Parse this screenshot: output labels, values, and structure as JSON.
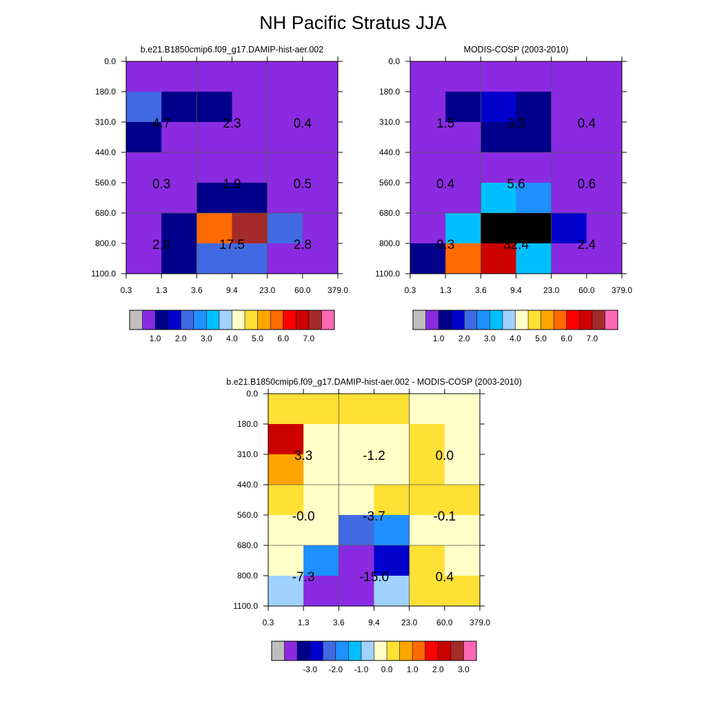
{
  "figure": {
    "title": "NH Pacific Stratus JJA"
  },
  "chart_data": [
    {
      "type": "heatmap",
      "title": "b.e21.B1850cmip6.f09_g17.DAMIP-hist-aer.002",
      "x_ticks": [
        "0.3",
        "1.3",
        "3.6",
        "9.4",
        "23.0",
        "60.0",
        "379.0"
      ],
      "y_ticks": [
        "0.0",
        "180.0",
        "310.0",
        "440.0",
        "560.0",
        "680.0",
        "800.0",
        "1100.0"
      ],
      "cells": [
        [
          "1",
          "1",
          "1",
          "1",
          "1",
          "1"
        ],
        [
          "4",
          "2",
          "2",
          "1",
          "1",
          "1"
        ],
        [
          "2",
          "1",
          "1",
          "1",
          "1",
          "1"
        ],
        [
          "1",
          "1",
          "1",
          "1",
          "1",
          "1"
        ],
        [
          "1",
          "1",
          "2",
          "2",
          "1",
          "1"
        ],
        [
          "1",
          "2",
          "11",
          "14",
          "4",
          "1"
        ],
        [
          "1",
          "2",
          "4",
          "4",
          "1",
          "1"
        ]
      ],
      "cell_values": [
        [
          "4.7",
          "2.3",
          "0.4"
        ],
        [
          "0.3",
          "1.9",
          "0.5"
        ],
        [
          "2.0",
          "17.5",
          "2.8"
        ]
      ],
      "colorbar": {
        "colors": [
          "#bebebe",
          "#8a2be2",
          "#00008b",
          "#0000cd",
          "#4169e1",
          "#1e90ff",
          "#00bfff",
          "#a0d2ff",
          "#ffffc8",
          "#ffe034",
          "#ffa500",
          "#ff6a00",
          "#ff0000",
          "#cd0000",
          "#a52a2a",
          "#ff69b4"
        ],
        "labels": [
          "1.0",
          "2.0",
          "3.0",
          "4.0",
          "5.0",
          "6.0",
          "7.0"
        ],
        "label_boundaries": [
          2,
          4,
          6,
          8,
          10,
          12,
          14
        ]
      }
    },
    {
      "type": "heatmap",
      "title": "MODIS-COSP (2003-2010)",
      "x_ticks": [
        "0.3",
        "1.3",
        "3.6",
        "9.4",
        "23.0",
        "60.0",
        "379.0"
      ],
      "y_ticks": [
        "0.0",
        "180.0",
        "310.0",
        "440.0",
        "560.0",
        "680.0",
        "800.0",
        "1100.0"
      ],
      "cells": [
        [
          "1",
          "1",
          "1",
          "1",
          "1",
          "1"
        ],
        [
          "1",
          "2",
          "3",
          "2",
          "1",
          "1"
        ],
        [
          "1",
          "1",
          "2",
          "2",
          "1",
          "1"
        ],
        [
          "1",
          "1",
          "1",
          "1",
          "1",
          "1"
        ],
        [
          "1",
          "1",
          "6",
          "5",
          "1",
          "1"
        ],
        [
          "1",
          "6",
          "16",
          "16",
          "3",
          "1"
        ],
        [
          "2",
          "11",
          "13",
          "6",
          "1",
          "1"
        ]
      ],
      "cell_values": [
        [
          "1.5",
          "3.5",
          "0.4"
        ],
        [
          "0.4",
          "5.6",
          "0.6"
        ],
        [
          "9.3",
          "32.4",
          "2.4"
        ]
      ],
      "colorbar": {
        "colors": [
          "#bebebe",
          "#8a2be2",
          "#00008b",
          "#0000cd",
          "#4169e1",
          "#1e90ff",
          "#00bfff",
          "#a0d2ff",
          "#ffffc8",
          "#ffe034",
          "#ffa500",
          "#ff6a00",
          "#ff0000",
          "#cd0000",
          "#a52a2a",
          "#ff69b4"
        ],
        "labels": [
          "1.0",
          "2.0",
          "3.0",
          "4.0",
          "5.0",
          "6.0",
          "7.0"
        ],
        "label_boundaries": [
          2,
          4,
          6,
          8,
          10,
          12,
          14
        ]
      }
    },
    {
      "type": "heatmap",
      "title": "b.e21.B1850cmip6.f09_g17.DAMIP-hist-aer.002 - MODIS-COSP (2003-2010)",
      "x_ticks": [
        "0.3",
        "1.3",
        "3.6",
        "9.4",
        "23.0",
        "60.0",
        "379.0"
      ],
      "y_ticks": [
        "0.0",
        "180.0",
        "310.0",
        "440.0",
        "560.0",
        "680.0",
        "800.0",
        "1100.0"
      ],
      "cells": [
        [
          "9",
          "9",
          "9",
          "9",
          "8",
          "8"
        ],
        [
          "13",
          "8",
          "8",
          "8",
          "9",
          "8"
        ],
        [
          "10",
          "8",
          "8",
          "8",
          "9",
          "8"
        ],
        [
          "9",
          "8",
          "8",
          "9",
          "9",
          "9"
        ],
        [
          "8",
          "8",
          "4",
          "5",
          "8",
          "8"
        ],
        [
          "8",
          "5",
          "1",
          "3",
          "9",
          "8"
        ],
        [
          "7",
          "1",
          "1",
          "7",
          "9",
          "9"
        ]
      ],
      "cell_values": [
        [
          "3.3",
          "-1.2",
          "0.0"
        ],
        [
          "-0.0",
          "-3.7",
          "-0.1"
        ],
        [
          "-7.3",
          "-15.0",
          "0.4"
        ]
      ],
      "colorbar": {
        "colors": [
          "#bebebe",
          "#8a2be2",
          "#00008b",
          "#0000cd",
          "#4169e1",
          "#1e90ff",
          "#00bfff",
          "#a0d2ff",
          "#ffffc8",
          "#ffe034",
          "#ffa500",
          "#ff6a00",
          "#ff0000",
          "#cd0000",
          "#a52a2a",
          "#ff69b4"
        ],
        "labels": [
          "-3.0",
          "-2.0",
          "-1.0",
          "0.0",
          "1.0",
          "2.0",
          "3.0"
        ],
        "label_boundaries": [
          3,
          5,
          7,
          9,
          11,
          13,
          15
        ]
      }
    }
  ]
}
